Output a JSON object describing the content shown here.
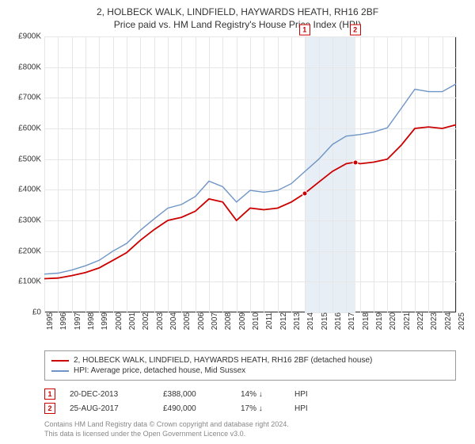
{
  "chart": {
    "title": "2, HOLBECK WALK, LINDFIELD, HAYWARDS HEATH, RH16 2BF",
    "subtitle": "Price paid vs. HM Land Registry's House Price Index (HPI)",
    "background_color": "#ffffff",
    "grid_color": "#e6e6e6",
    "axis_color": "#333333",
    "x": {
      "min": 1995,
      "max": 2025,
      "ticks": [
        1995,
        1996,
        1997,
        1998,
        1999,
        2000,
        2001,
        2002,
        2003,
        2004,
        2005,
        2006,
        2007,
        2008,
        2009,
        2010,
        2011,
        2012,
        2013,
        2014,
        2015,
        2016,
        2017,
        2018,
        2019,
        2020,
        2021,
        2022,
        2023,
        2024,
        2025
      ]
    },
    "y": {
      "min": 0,
      "max": 900000,
      "tick_step": 100000,
      "label_prefix": "£",
      "label_suffix": "K",
      "divide": 1000
    },
    "shade_band": {
      "start": 2013.97,
      "end": 2017.65,
      "color": "#e8eef5"
    },
    "series": [
      {
        "name": "property",
        "label": "2, HOLBECK WALK, LINDFIELD, HAYWARDS HEATH, RH16 2BF (detached house)",
        "color": "#cc0000",
        "width": 1.8,
        "points": [
          [
            1995,
            110000
          ],
          [
            1996,
            112000
          ],
          [
            1997,
            120000
          ],
          [
            1998,
            130000
          ],
          [
            1999,
            145000
          ],
          [
            2000,
            170000
          ],
          [
            2001,
            195000
          ],
          [
            2002,
            235000
          ],
          [
            2003,
            270000
          ],
          [
            2004,
            300000
          ],
          [
            2005,
            310000
          ],
          [
            2006,
            330000
          ],
          [
            2007,
            370000
          ],
          [
            2008,
            360000
          ],
          [
            2009,
            300000
          ],
          [
            2010,
            340000
          ],
          [
            2011,
            335000
          ],
          [
            2012,
            340000
          ],
          [
            2013,
            360000
          ],
          [
            2013.97,
            388000
          ],
          [
            2015,
            425000
          ],
          [
            2016,
            460000
          ],
          [
            2017,
            485000
          ],
          [
            2017.65,
            490000
          ],
          [
            2018,
            485000
          ],
          [
            2019,
            490000
          ],
          [
            2020,
            500000
          ],
          [
            2021,
            545000
          ],
          [
            2022,
            600000
          ],
          [
            2023,
            605000
          ],
          [
            2024,
            600000
          ],
          [
            2025,
            612000
          ]
        ]
      },
      {
        "name": "hpi",
        "label": "HPI: Average price, detached house, Mid Sussex",
        "color": "#6e95c7",
        "width": 1.4,
        "points": [
          [
            1995,
            125000
          ],
          [
            1996,
            128000
          ],
          [
            1997,
            138000
          ],
          [
            1998,
            152000
          ],
          [
            1999,
            170000
          ],
          [
            2000,
            200000
          ],
          [
            2001,
            225000
          ],
          [
            2002,
            268000
          ],
          [
            2003,
            305000
          ],
          [
            2004,
            340000
          ],
          [
            2005,
            352000
          ],
          [
            2006,
            378000
          ],
          [
            2007,
            428000
          ],
          [
            2008,
            410000
          ],
          [
            2009,
            360000
          ],
          [
            2010,
            398000
          ],
          [
            2011,
            392000
          ],
          [
            2012,
            398000
          ],
          [
            2013,
            420000
          ],
          [
            2014,
            460000
          ],
          [
            2015,
            500000
          ],
          [
            2016,
            548000
          ],
          [
            2017,
            575000
          ],
          [
            2018,
            580000
          ],
          [
            2019,
            588000
          ],
          [
            2020,
            602000
          ],
          [
            2021,
            665000
          ],
          [
            2022,
            728000
          ],
          [
            2023,
            720000
          ],
          [
            2024,
            720000
          ],
          [
            2025,
            745000
          ]
        ]
      }
    ],
    "sale_markers": [
      {
        "n": "1",
        "x": 2013.97,
        "price": 388000
      },
      {
        "n": "2",
        "x": 2017.65,
        "price": 490000
      }
    ]
  },
  "legend": {
    "items": [
      {
        "color": "#cc0000",
        "text": "2, HOLBECK WALK, LINDFIELD, HAYWARDS HEATH, RH16 2BF (detached house)"
      },
      {
        "color": "#6e95c7",
        "text": "HPI: Average price, detached house, Mid Sussex"
      }
    ]
  },
  "sales": [
    {
      "n": "1",
      "date": "20-DEC-2013",
      "price": "£388,000",
      "delta": "14% ↓",
      "delta_suffix": "HPI"
    },
    {
      "n": "2",
      "date": "25-AUG-2017",
      "price": "£490,000",
      "delta": "17% ↓",
      "delta_suffix": "HPI"
    }
  ],
  "copyright": {
    "line1": "Contains HM Land Registry data © Crown copyright and database right 2024.",
    "line2": "This data is licensed under the Open Government Licence v3.0."
  }
}
